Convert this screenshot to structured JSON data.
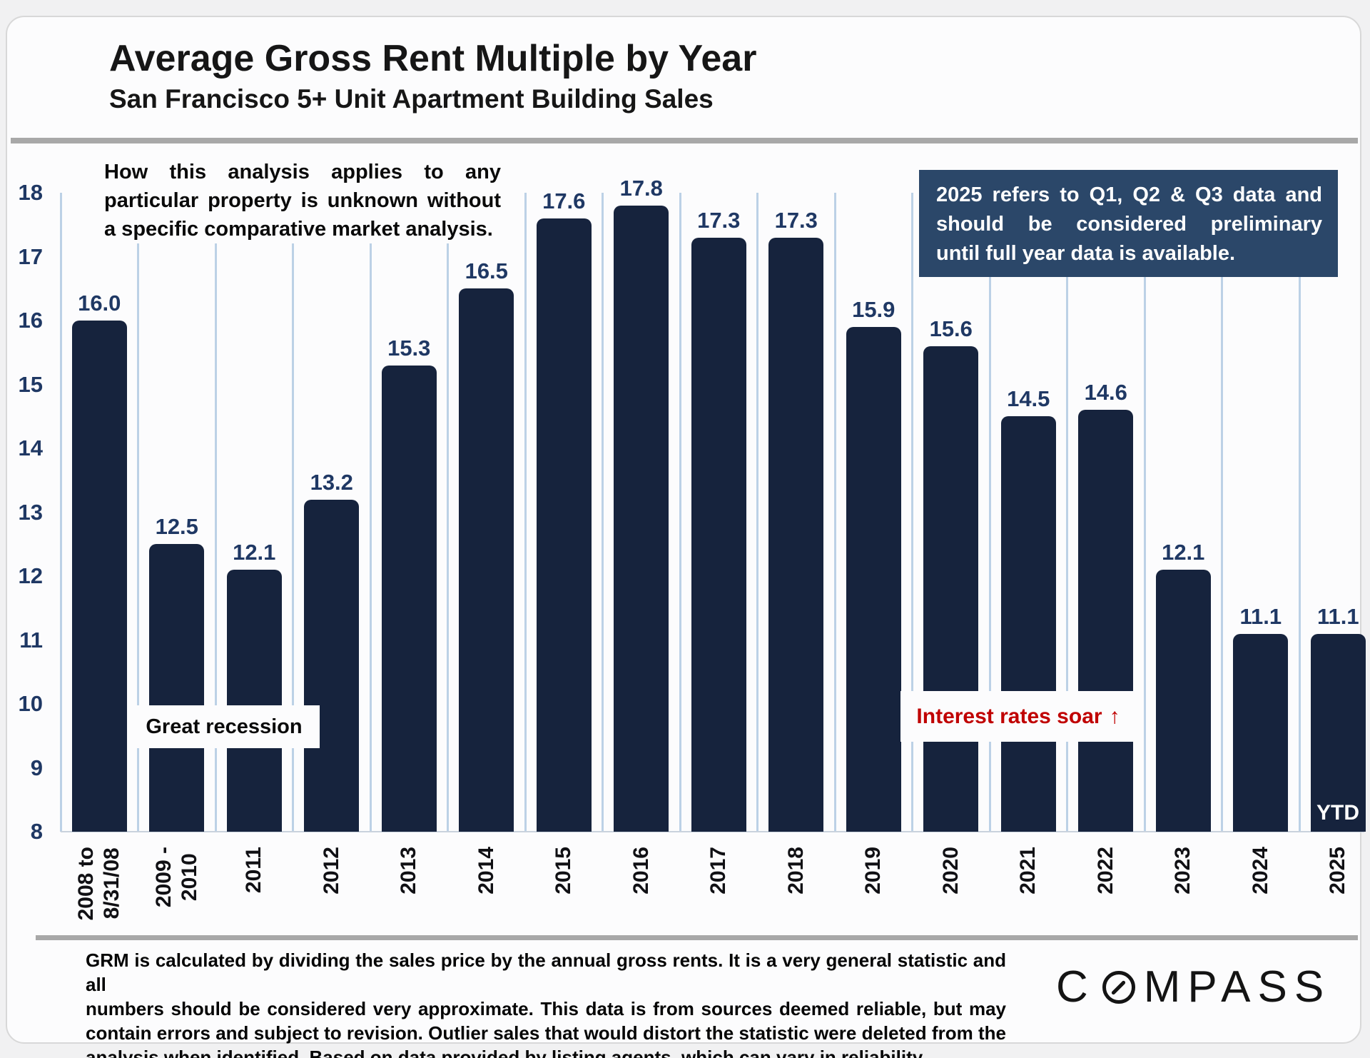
{
  "header": {
    "title": "Average Gross Rent Multiple by Year",
    "subtitle": "San Francisco 5+ Unit Apartment Building Sales"
  },
  "chart_data": {
    "type": "bar",
    "title": "Average Gross Rent Multiple by Year",
    "subtitle": "San Francisco 5+ Unit Apartment Building Sales",
    "categories": [
      "2008 to\n8/31/08",
      "2009 -\n2010",
      "2011",
      "2012",
      "2013",
      "2014",
      "2015",
      "2016",
      "2017",
      "2018",
      "2019",
      "2020",
      "2021",
      "2022",
      "2023",
      "2024",
      "2025"
    ],
    "values": [
      16.0,
      12.5,
      12.1,
      13.2,
      15.3,
      16.5,
      17.6,
      17.8,
      17.3,
      17.3,
      15.9,
      15.6,
      14.5,
      14.6,
      12.1,
      11.1,
      11.1
    ],
    "ylim": [
      8,
      18
    ],
    "yticks": [
      8,
      9,
      10,
      11,
      12,
      13,
      14,
      15,
      16,
      17,
      18
    ],
    "grid": "vertical category separators only",
    "legend": "none",
    "value_label_format": "0.0",
    "last_bar_note": "YTD"
  },
  "colors": {
    "bar": "#16233d",
    "value_label": "#1f3864",
    "axis_tick_label": "#1f3864",
    "gridline": "#bcd1e6",
    "callout_bg": "#2b4769",
    "alert_red": "#c00000",
    "divider_gray": "#a8a8a8"
  },
  "annotations": {
    "analysis_note_lines": [
      "How this analysis applies to any",
      "particular property is unknown without",
      "a specific comparative market analysis."
    ],
    "callout_2025_lines": [
      "2025 refers to Q1, Q2 & Q3 data and",
      "should be considered preliminary",
      "until full year data is available."
    ],
    "great_recession": "Great recession",
    "interest_rates": {
      "label": "Interest rates soar",
      "arrow": "↑"
    },
    "ytd_label": "YTD"
  },
  "footer": {
    "disclaimer_lines": [
      "GRM is calculated by dividing the sales price by the annual gross rents. It is a very general statistic and all",
      "numbers should be considered very approximate. This data is from sources deemed reliable, but may",
      "contain errors and subject to revision. Outlier sales that would distort the statistic were deleted from the",
      "analysis when identified. Based on data provided by listing agents, which can vary in reliability."
    ],
    "logo_text": "COMPASS"
  }
}
